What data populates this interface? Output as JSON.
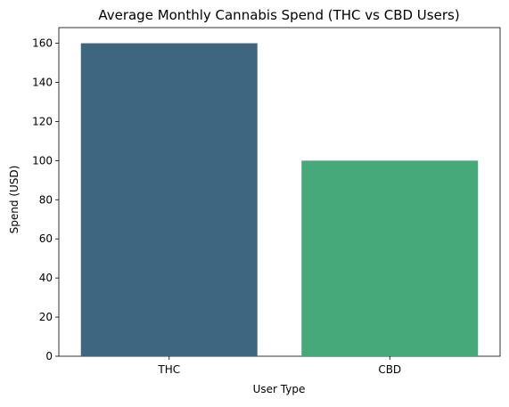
{
  "chart_data": {
    "type": "bar",
    "title": "Average Monthly Cannabis Spend (THC vs CBD Users)",
    "xlabel": "User Type",
    "ylabel": "Spend (USD)",
    "categories": [
      "THC",
      "CBD"
    ],
    "values": [
      160,
      100
    ],
    "colors": [
      "#3e6680",
      "#46a979"
    ],
    "ylim": [
      0,
      168
    ],
    "yticks": [
      0,
      20,
      40,
      60,
      80,
      100,
      120,
      140,
      160
    ],
    "grid": false,
    "legend": false
  }
}
